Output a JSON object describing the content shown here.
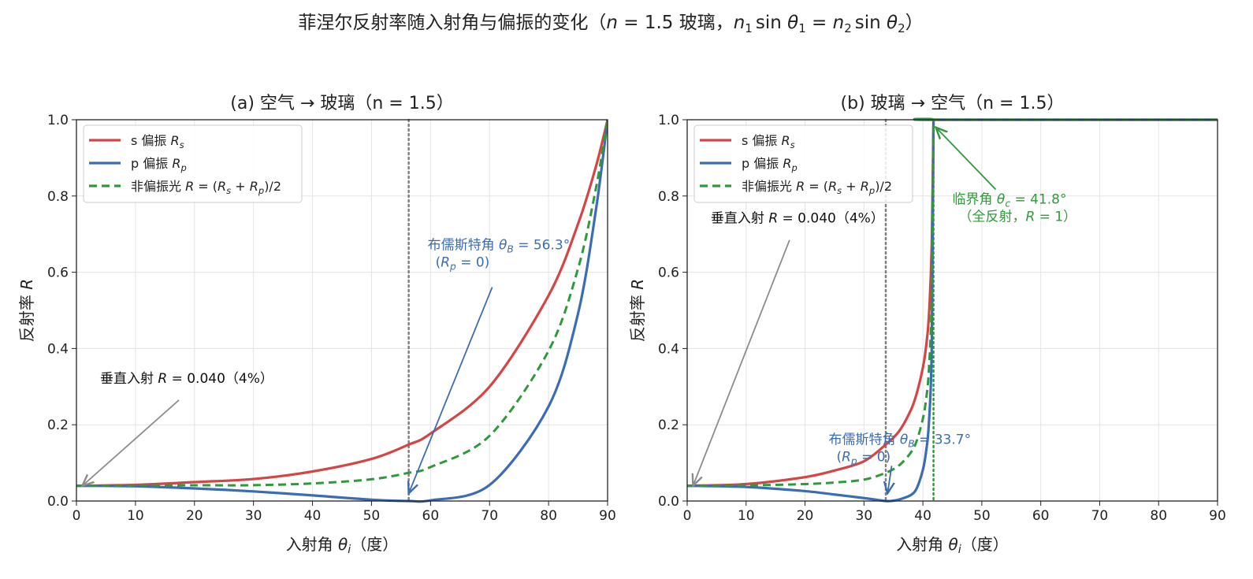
{
  "figure": {
    "title": "菲涅尔反射率随入射角与偏振的变化（n = 1.5 玻璃，n₁ sin θ₁ = n₂ sin θ₂）",
    "title_parts": {
      "pre": "菲涅尔反射率随入射角与偏振的变化（",
      "n": "n",
      "eq": " = 1.5 玻璃，",
      "n1": "n",
      "sub1": "1",
      "sin1": "sin ",
      "th1": "θ",
      "sub1b": "1",
      "eq2": " = ",
      "n2": "n",
      "sub2": "2",
      "sin2": "sin ",
      "th2": "θ",
      "sub2b": "2",
      "close": "）"
    }
  },
  "colors": {
    "s": "#d44646",
    "p": "#3b6db4",
    "u": "#2f9a3a",
    "guide": "#7f7f7f",
    "arrow_gray": "#8c8c8c"
  },
  "chart_data": [
    {
      "type": "line",
      "title": "(a) 空气 → 玻璃（n = 1.5）",
      "xlabel": "入射角 θi（度）",
      "ylabel": "反射率 R",
      "xlim": [
        0,
        90
      ],
      "ylim": [
        0,
        1.0
      ],
      "xticks": [
        "0",
        "10",
        "20",
        "30",
        "40",
        "50",
        "60",
        "70",
        "80",
        "90"
      ],
      "yticks": [
        "0.0",
        "0.2",
        "0.4",
        "0.6",
        "0.8",
        "1.0"
      ],
      "grid": true,
      "legend": "top-left",
      "series": [
        {
          "name": "s 偏振 Rs",
          "style": "solid",
          "x": [
            0,
            10,
            20,
            30,
            40,
            50,
            56.3,
            60,
            70,
            80,
            85,
            88,
            90
          ],
          "y": [
            0.04,
            0.0423,
            0.0496,
            0.0577,
            0.0775,
            0.1104,
            0.148,
            0.177,
            0.3,
            0.539,
            0.727,
            0.876,
            1.0
          ]
        },
        {
          "name": "p 偏振 Rp",
          "style": "solid",
          "x": [
            0,
            10,
            20,
            30,
            40,
            50,
            56.3,
            60,
            70,
            80,
            85,
            88,
            90
          ],
          "y": [
            0.04,
            0.0387,
            0.033,
            0.0252,
            0.0147,
            0.0035,
            0.0,
            0.0017,
            0.042,
            0.248,
            0.492,
            0.761,
            1.0
          ]
        },
        {
          "name": "非偏振光 R = (Rs + Rp)/2",
          "style": "dashed",
          "x": [
            0,
            10,
            20,
            30,
            40,
            50,
            56.3,
            60,
            70,
            80,
            85,
            88,
            90
          ],
          "y": [
            0.04,
            0.0405,
            0.0413,
            0.0415,
            0.0461,
            0.057,
            0.074,
            0.089,
            0.171,
            0.394,
            0.61,
            0.818,
            1.0
          ]
        }
      ],
      "vlines": [
        {
          "x": 56.3,
          "style": "dotted",
          "color": "gray"
        }
      ],
      "annotations": [
        {
          "text": "垂直入射 R = 0.040（4%）",
          "point": [
            1,
            0.04
          ],
          "text_at": [
            4,
            0.31
          ],
          "color": "#000000"
        },
        {
          "text": "布儒斯特角 θB = 56.3°",
          "text2": "(Rp = 0)",
          "point": [
            56.3,
            0.02
          ],
          "text_at": [
            59.5,
            0.66
          ],
          "color": "#3b6db4"
        }
      ]
    },
    {
      "type": "line",
      "title": "(b) 玻璃 → 空气（n = 1.5）",
      "xlabel": "入射角 θi（度）",
      "ylabel": "反射率 R",
      "xlim": [
        0,
        90
      ],
      "ylim": [
        0,
        1.0
      ],
      "xticks": [
        "0",
        "10",
        "20",
        "30",
        "40",
        "50",
        "60",
        "70",
        "80",
        "90"
      ],
      "yticks": [
        "0.0",
        "0.2",
        "0.4",
        "0.6",
        "0.8",
        "1.0"
      ],
      "grid": true,
      "legend": "top-left",
      "series": [
        {
          "name": "s 偏振 Rs",
          "style": "solid",
          "x": [
            0,
            10,
            20,
            25,
            30,
            33.7,
            36,
            38,
            39,
            40,
            40.5,
            41,
            41.5,
            41.8,
            42,
            90
          ],
          "y": [
            0.04,
            0.0445,
            0.0627,
            0.08,
            0.1043,
            0.148,
            0.184,
            0.24,
            0.285,
            0.35,
            0.4,
            0.48,
            0.67,
            1.0,
            1.0,
            1.0
          ]
        },
        {
          "name": "p 偏振 Rp",
          "style": "solid",
          "x": [
            0,
            10,
            20,
            25,
            30,
            33.7,
            35,
            36,
            38,
            39,
            40,
            40.5,
            41,
            41.5,
            41.8,
            42,
            90
          ],
          "y": [
            0.04,
            0.037,
            0.026,
            0.017,
            0.0078,
            0.0,
            0.001,
            0.004,
            0.016,
            0.035,
            0.082,
            0.125,
            0.2,
            0.4,
            1.0,
            1.0,
            1.0
          ]
        },
        {
          "name": "非偏振光 R = (Rs + Rp)/2",
          "style": "dashed",
          "x": [
            0,
            10,
            20,
            25,
            30,
            33.7,
            36,
            38,
            39,
            40,
            40.5,
            41,
            41.5,
            41.8,
            42,
            90
          ],
          "y": [
            0.04,
            0.041,
            0.0444,
            0.0485,
            0.056,
            0.074,
            0.094,
            0.128,
            0.16,
            0.216,
            0.262,
            0.34,
            0.535,
            1.0,
            1.0,
            1.0
          ]
        }
      ],
      "vlines": [
        {
          "x": 33.7,
          "style": "dotted",
          "color": "gray"
        },
        {
          "x": 41.8,
          "style": "dotted",
          "color": "green"
        }
      ],
      "annotations": [
        {
          "text": "垂直入射 R = 0.040（4%）",
          "point": [
            1,
            0.04
          ],
          "text_at": [
            4,
            0.73
          ],
          "color": "#000000"
        },
        {
          "text": "布儒斯特角 θB = 33.7°",
          "text2": "(Rp = 0)",
          "point": [
            34,
            0.02
          ],
          "text_at": [
            24,
            0.15
          ],
          "color": "#3b6db4"
        },
        {
          "text": "临界角 θc = 41.8°",
          "text2": "（全反射，R = 1）",
          "point": [
            42.2,
            0.98
          ],
          "text_at": [
            45,
            0.78
          ],
          "color": "#2f9a3a"
        }
      ]
    }
  ]
}
